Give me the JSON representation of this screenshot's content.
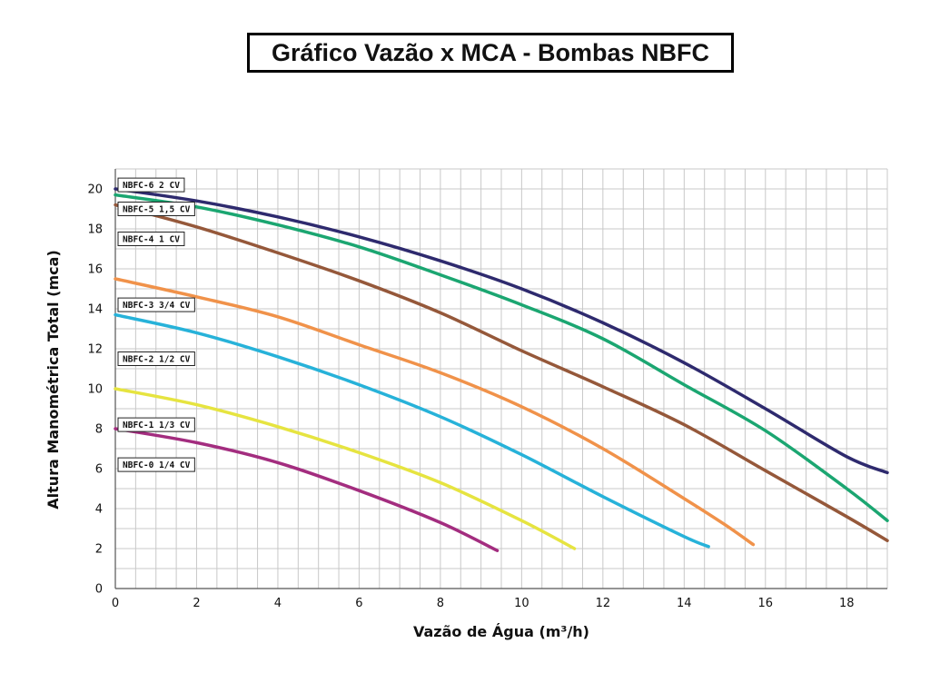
{
  "chart_data": {
    "type": "line",
    "title": "Gráfico Vazão x MCA - Bombas NBFC",
    "xlabel": "Vazão de Água (m³/h)",
    "ylabel": "Altura Manométrica Total (mca)",
    "xlim": [
      0,
      19
    ],
    "ylim": [
      0,
      21
    ],
    "x_ticks": [
      0,
      2,
      4,
      6,
      8,
      10,
      12,
      14,
      16,
      18
    ],
    "y_ticks": [
      0,
      2,
      4,
      6,
      8,
      10,
      12,
      14,
      16,
      18,
      20
    ],
    "grid": true,
    "x_minor_step": 0.5,
    "y_minor_step": 1,
    "series": [
      {
        "name": "NBFC-6 2 CV",
        "color": "#2e2a6e",
        "label_y": 20.2,
        "points": [
          [
            0,
            20
          ],
          [
            2,
            19.4
          ],
          [
            4,
            18.6
          ],
          [
            6,
            17.6
          ],
          [
            8,
            16.4
          ],
          [
            10,
            15
          ],
          [
            12,
            13.3
          ],
          [
            14,
            11.3
          ],
          [
            16,
            9
          ],
          [
            18,
            6.6
          ],
          [
            19,
            5.8
          ]
        ]
      },
      {
        "name": "NBFC-5 1,5 CV",
        "color": "#1ba671",
        "label_y": 19.0,
        "points": [
          [
            0,
            19.7
          ],
          [
            2,
            19.1
          ],
          [
            4,
            18.2
          ],
          [
            6,
            17.1
          ],
          [
            8,
            15.7
          ],
          [
            10,
            14.2
          ],
          [
            12,
            12.5
          ],
          [
            14,
            10.2
          ],
          [
            16,
            7.9
          ],
          [
            18,
            5
          ],
          [
            19,
            3.4
          ]
        ]
      },
      {
        "name": "NBFC-4 1 CV",
        "color": "#95583a",
        "label_y": 17.5,
        "points": [
          [
            0,
            19.2
          ],
          [
            2,
            18.1
          ],
          [
            4,
            16.8
          ],
          [
            6,
            15.4
          ],
          [
            8,
            13.8
          ],
          [
            10,
            11.9
          ],
          [
            12,
            10.1
          ],
          [
            14,
            8.2
          ],
          [
            16,
            5.9
          ],
          [
            18,
            3.6
          ],
          [
            19,
            2.4
          ]
        ]
      },
      {
        "name": "NBFC-3 3/4 CV",
        "color": "#f0924a",
        "label_y": 14.2,
        "points": [
          [
            0,
            15.5
          ],
          [
            2,
            14.6
          ],
          [
            4,
            13.6
          ],
          [
            6,
            12.2
          ],
          [
            8,
            10.8
          ],
          [
            10,
            9.1
          ],
          [
            12,
            7
          ],
          [
            14,
            4.5
          ],
          [
            15,
            3.2
          ],
          [
            15.7,
            2.2
          ]
        ]
      },
      {
        "name": "NBFC-2 1/2 CV",
        "color": "#27b2d9",
        "label_y": 11.5,
        "points": [
          [
            0,
            13.7
          ],
          [
            2,
            12.8
          ],
          [
            4,
            11.6
          ],
          [
            6,
            10.2
          ],
          [
            8,
            8.6
          ],
          [
            10,
            6.7
          ],
          [
            12,
            4.6
          ],
          [
            14,
            2.6
          ],
          [
            14.6,
            2.1
          ]
        ]
      },
      {
        "name": "NBFC-1 1/3 CV",
        "color": "#e6e440",
        "label_y": 8.2,
        "points": [
          [
            0,
            10
          ],
          [
            2,
            9.2
          ],
          [
            4,
            8.1
          ],
          [
            6,
            6.8
          ],
          [
            8,
            5.3
          ],
          [
            10,
            3.4
          ],
          [
            11.3,
            2
          ]
        ]
      },
      {
        "name": "NBFC-0 1/4 CV",
        "color": "#a32d7f",
        "label_y": 6.2,
        "points": [
          [
            0,
            8
          ],
          [
            2,
            7.3
          ],
          [
            4,
            6.3
          ],
          [
            6,
            4.9
          ],
          [
            8,
            3.3
          ],
          [
            9.4,
            1.9
          ]
        ]
      }
    ]
  }
}
